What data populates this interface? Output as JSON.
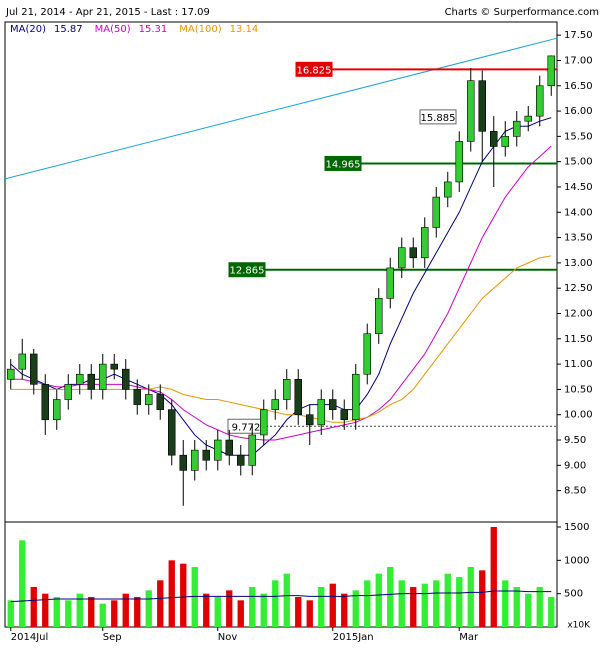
{
  "chart_data": {
    "type": "candlestick",
    "title": "Jul 21, 2014 - Apr 21, 2015 - Last : 17.09",
    "credit": "Charts © Surperformance.com",
    "categories": [
      "2014Jul",
      null,
      null,
      null,
      null,
      null,
      null,
      null,
      "Sep",
      null,
      null,
      null,
      null,
      null,
      null,
      null,
      null,
      null,
      "Nov",
      null,
      null,
      null,
      null,
      null,
      null,
      null,
      null,
      null,
      "2015Jan",
      null,
      null,
      null,
      null,
      null,
      null,
      null,
      null,
      null,
      null,
      "Mar",
      null,
      null,
      null,
      null,
      null,
      null,
      null,
      null
    ],
    "open": [
      10.7,
      10.9,
      11.2,
      10.6,
      9.9,
      10.3,
      10.6,
      10.8,
      10.5,
      11.0,
      10.9,
      10.5,
      10.2,
      10.4,
      10.1,
      9.2,
      8.9,
      9.3,
      9.1,
      9.5,
      9.2,
      9.0,
      9.6,
      10.1,
      10.3,
      10.7,
      10.0,
      9.8,
      10.3,
      10.1,
      9.9,
      10.8,
      11.6,
      12.3,
      12.9,
      13.3,
      13.1,
      13.7,
      14.3,
      14.6,
      15.4,
      16.6,
      15.6,
      15.3,
      15.5,
      15.8,
      15.9,
      16.5
    ],
    "high": [
      11.1,
      11.5,
      11.3,
      10.8,
      10.5,
      10.8,
      11.0,
      11.0,
      11.2,
      11.2,
      11.1,
      10.7,
      10.6,
      10.6,
      10.3,
      9.5,
      9.5,
      9.5,
      9.7,
      9.7,
      9.4,
      9.8,
      10.3,
      10.5,
      10.9,
      10.9,
      10.2,
      10.5,
      10.5,
      10.3,
      11.0,
      11.8,
      12.5,
      13.1,
      13.5,
      13.5,
      13.9,
      14.5,
      14.8,
      15.6,
      16.85,
      16.8,
      15.9,
      15.8,
      16.0,
      16.1,
      16.7,
      17.1
    ],
    "low": [
      10.5,
      10.7,
      10.4,
      9.6,
      9.7,
      10.1,
      10.4,
      10.3,
      10.3,
      10.7,
      10.3,
      10.0,
      10.0,
      9.9,
      9.0,
      8.2,
      8.7,
      8.9,
      8.9,
      9.0,
      8.8,
      8.8,
      9.4,
      9.9,
      10.1,
      9.8,
      9.4,
      9.6,
      9.9,
      9.7,
      9.7,
      10.6,
      11.4,
      12.1,
      12.7,
      12.9,
      12.9,
      13.5,
      14.1,
      14.4,
      15.2,
      15.0,
      14.5,
      15.1,
      15.3,
      15.6,
      15.7,
      16.3
    ],
    "close": [
      10.9,
      11.2,
      10.6,
      9.9,
      10.3,
      10.6,
      10.8,
      10.5,
      11.0,
      10.9,
      10.5,
      10.2,
      10.4,
      10.1,
      9.2,
      8.9,
      9.3,
      9.1,
      9.5,
      9.2,
      9.0,
      9.6,
      10.1,
      10.3,
      10.7,
      10.0,
      9.8,
      10.3,
      10.1,
      9.9,
      10.8,
      11.6,
      12.3,
      12.9,
      13.3,
      13.1,
      13.7,
      14.3,
      14.6,
      15.4,
      16.6,
      15.6,
      15.3,
      15.5,
      15.8,
      15.9,
      16.5,
      17.09
    ],
    "up_color": "#33cc33",
    "down_color": "#1a3d1a",
    "series": [
      {
        "name": "MA(20)",
        "last": 15.87,
        "color": "#000080",
        "values": [
          11.0,
          10.8,
          10.7,
          10.6,
          10.5,
          10.6,
          10.6,
          10.7,
          10.7,
          10.8,
          10.7,
          10.6,
          10.5,
          10.4,
          10.2,
          9.9,
          9.6,
          9.4,
          9.3,
          9.2,
          9.2,
          9.2,
          9.4,
          9.6,
          9.9,
          10.1,
          10.2,
          10.2,
          10.2,
          10.1,
          10.1,
          10.4,
          10.8,
          11.4,
          11.9,
          12.4,
          12.8,
          13.2,
          13.6,
          14.0,
          14.5,
          15.0,
          15.3,
          15.6,
          15.7,
          15.7,
          15.8,
          15.87
        ]
      },
      {
        "name": "MA(50)",
        "last": 15.31,
        "color": "#cc00cc",
        "values": [
          10.7,
          10.7,
          10.65,
          10.6,
          10.55,
          10.55,
          10.6,
          10.6,
          10.6,
          10.6,
          10.6,
          10.55,
          10.5,
          10.45,
          10.3,
          10.1,
          9.95,
          9.8,
          9.7,
          9.6,
          9.55,
          9.52,
          9.5,
          9.5,
          9.55,
          9.6,
          9.65,
          9.7,
          9.75,
          9.8,
          9.85,
          9.95,
          10.1,
          10.3,
          10.6,
          10.9,
          11.2,
          11.6,
          12.0,
          12.5,
          13.0,
          13.5,
          13.9,
          14.3,
          14.6,
          14.9,
          15.1,
          15.31
        ]
      },
      {
        "name": "MA(100)",
        "last": 13.14,
        "color": "#e69500",
        "values": [
          10.5,
          10.5,
          10.5,
          10.5,
          10.5,
          10.5,
          10.5,
          10.5,
          10.5,
          10.5,
          10.5,
          10.5,
          10.5,
          10.55,
          10.5,
          10.4,
          10.35,
          10.3,
          10.3,
          10.25,
          10.2,
          10.15,
          10.1,
          10.05,
          10.0,
          10.0,
          9.95,
          9.9,
          9.85,
          9.85,
          9.9,
          9.95,
          10.05,
          10.2,
          10.3,
          10.5,
          10.8,
          11.1,
          11.4,
          11.7,
          12.0,
          12.3,
          12.5,
          12.7,
          12.9,
          13.0,
          13.1,
          13.14
        ]
      }
    ],
    "trendline": {
      "start": 14.66,
      "end": 17.44,
      "color": "#1aa3d9"
    },
    "levels": [
      {
        "value": 16.825,
        "color": "#e00000",
        "style": "solid"
      },
      {
        "value": 15.885,
        "color": "#555555",
        "style": "none"
      },
      {
        "value": 14.965,
        "color": "#006600",
        "style": "solid"
      },
      {
        "value": 12.865,
        "color": "#006600",
        "style": "solid"
      },
      {
        "value": 9.772,
        "color": "#555555",
        "style": "dotted"
      }
    ],
    "ylim": [
      7.88,
      17.76
    ],
    "yticks": [
      {
        "value": 8.5,
        "label": "8.50"
      },
      {
        "value": 9,
        "label": "9.00"
      },
      {
        "value": 9.5,
        "label": "9.50"
      },
      {
        "value": 10,
        "label": "10.00"
      },
      {
        "value": 10.5,
        "label": "10.50"
      },
      {
        "value": 11,
        "label": "11.00"
      },
      {
        "value": 11.5,
        "label": "11.50"
      },
      {
        "value": 12,
        "label": "12.00"
      },
      {
        "value": 12.5,
        "label": "12.50"
      },
      {
        "value": 13,
        "label": "13.00"
      },
      {
        "value": 13.5,
        "label": "13.50"
      },
      {
        "value": 14,
        "label": "14.00"
      },
      {
        "value": 14.5,
        "label": "14.50"
      },
      {
        "value": 15,
        "label": "15.00"
      },
      {
        "value": 15.5,
        "label": "15.50"
      },
      {
        "value": 16,
        "label": "16.00"
      },
      {
        "value": 16.5,
        "label": "16.50"
      },
      {
        "value": 17,
        "label": "17.00"
      },
      {
        "value": 17.5,
        "label": "17.50"
      }
    ],
    "volume": {
      "unit": "x10K",
      "values": [
        400,
        1300,
        600,
        500,
        450,
        400,
        500,
        450,
        350,
        400,
        500,
        450,
        550,
        700,
        1000,
        950,
        900,
        500,
        450,
        550,
        400,
        600,
        500,
        700,
        800,
        450,
        400,
        600,
        650,
        500,
        550,
        700,
        800,
        900,
        700,
        600,
        650,
        700,
        800,
        750,
        900,
        850,
        1500,
        700,
        600,
        500,
        600,
        450
      ],
      "ma": [
        380,
        390,
        400,
        410,
        420,
        420,
        420,
        420,
        420,
        420,
        420,
        420,
        420,
        430,
        440,
        450,
        460,
        460,
        460,
        460,
        460,
        460,
        460,
        460,
        470,
        470,
        460,
        460,
        460,
        460,
        470,
        470,
        480,
        490,
        500,
        500,
        500,
        510,
        510,
        510,
        520,
        520,
        540,
        540,
        540,
        530,
        530,
        530
      ],
      "ma_color": "#000080",
      "up_color": "#33ee33",
      "down_color": "#e00000",
      "ylim": [
        0,
        1575
      ],
      "yticks": [
        500,
        1000,
        1500
      ]
    }
  }
}
